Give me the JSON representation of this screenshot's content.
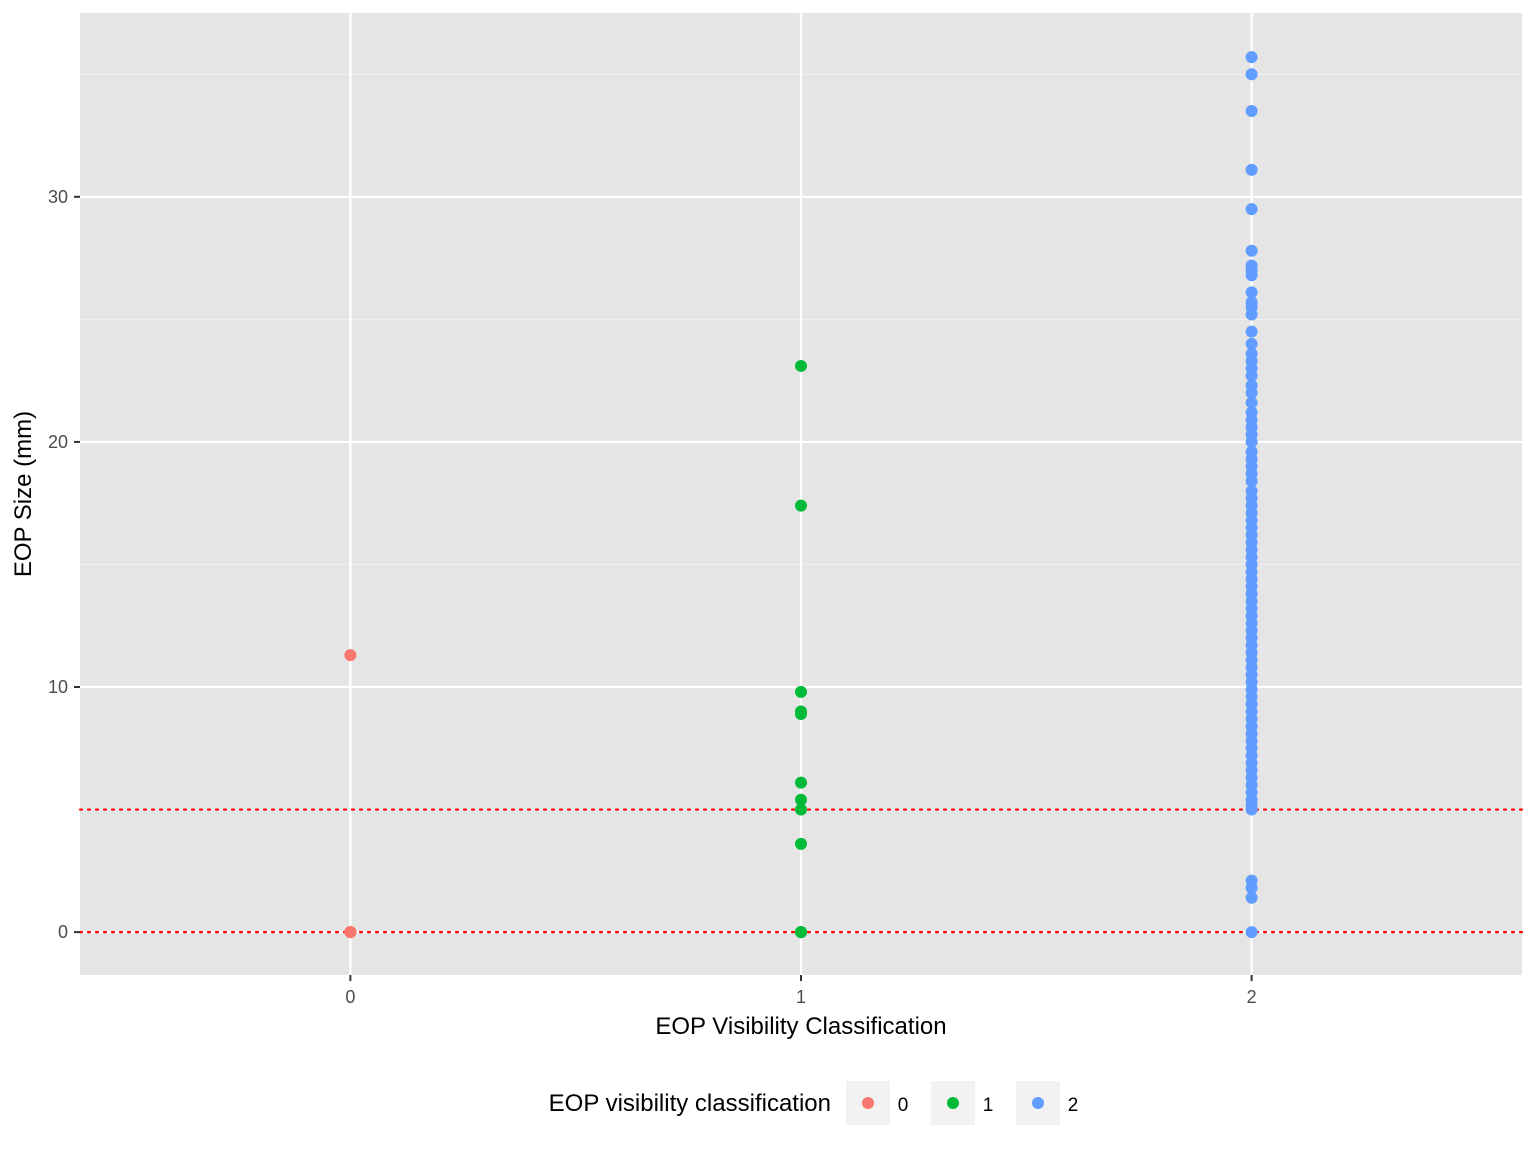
{
  "chart_data": {
    "type": "scatter",
    "title": "",
    "xlabel": "EOP Visibility Classification",
    "ylabel": "EOP Size (mm)",
    "x_ticks": [
      "0",
      "1",
      "2"
    ],
    "y_ticks": [
      "0",
      "10",
      "20",
      "30"
    ],
    "xlim": [
      -0.6,
      2.6
    ],
    "ylim": [
      -1.75,
      37.5
    ],
    "grid": true,
    "legend": {
      "title": "EOP visibility classification",
      "position": "bottom",
      "entries": [
        {
          "label": "0",
          "color": "#F8766D"
        },
        {
          "label": "1",
          "color": "#00BA38"
        },
        {
          "label": "2",
          "color": "#619CFF"
        }
      ]
    },
    "reference_lines": [
      {
        "y": 0,
        "color": "#FF0000",
        "style": "dotted"
      },
      {
        "y": 5,
        "color": "#FF0000",
        "style": "dotted"
      }
    ],
    "series": [
      {
        "name": "0",
        "color": "#F8766D",
        "x": 0,
        "y": [
          11.3,
          0,
          0,
          0
        ]
      },
      {
        "name": "1",
        "color": "#00BA38",
        "x": 1,
        "y": [
          23.1,
          17.4,
          9.8,
          9.0,
          8.9,
          6.1,
          5.4,
          5.0,
          3.6,
          0,
          0,
          0
        ]
      },
      {
        "name": "2",
        "color": "#619CFF",
        "x": 2,
        "y": [
          35.7,
          35.0,
          33.5,
          31.1,
          29.5,
          27.8,
          27.2,
          27.0,
          26.8,
          26.1,
          25.7,
          25.5,
          25.2,
          24.5,
          24.0,
          23.6,
          23.3,
          23.0,
          22.7,
          22.3,
          22.0,
          21.6,
          21.2,
          20.9,
          20.6,
          20.3,
          20.0,
          19.6,
          19.3,
          19.0,
          18.7,
          18.4,
          18.0,
          17.7,
          17.4,
          17.1,
          16.8,
          16.5,
          16.2,
          15.9,
          15.6,
          15.3,
          15.0,
          14.7,
          14.4,
          14.1,
          13.8,
          13.5,
          13.2,
          12.9,
          12.6,
          12.3,
          12.0,
          11.7,
          11.4,
          11.1,
          10.8,
          10.5,
          10.2,
          9.9,
          9.6,
          9.3,
          9.0,
          8.7,
          8.4,
          8.1,
          7.8,
          7.5,
          7.2,
          6.9,
          6.6,
          6.3,
          6.0,
          5.7,
          5.4,
          5.2,
          5.0,
          2.1,
          1.8,
          1.4,
          0
        ]
      }
    ]
  }
}
